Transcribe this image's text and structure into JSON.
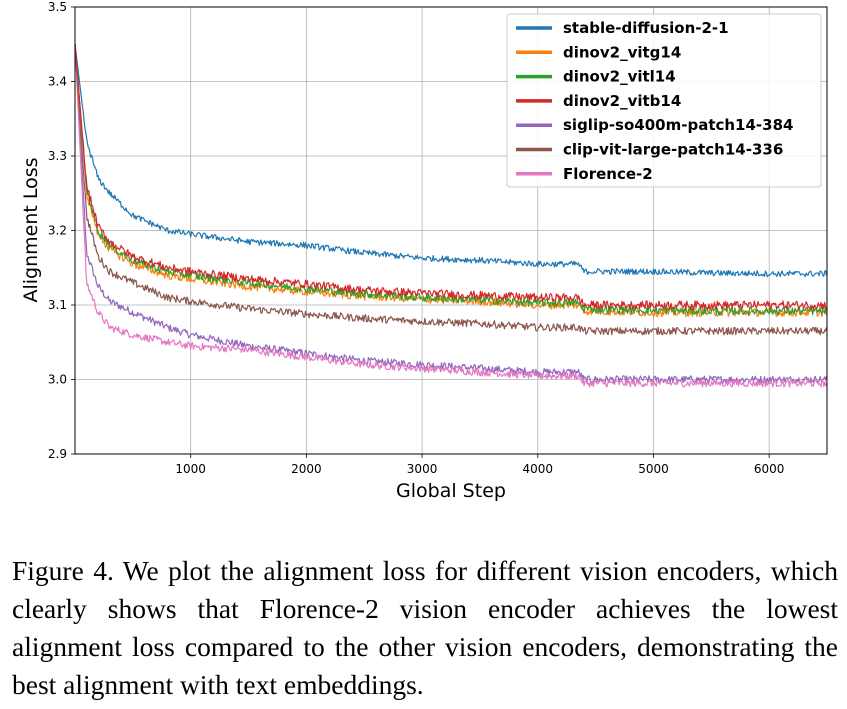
{
  "chart_data": {
    "type": "line",
    "xlabel": "Global Step",
    "ylabel": "Alignment Loss",
    "xlim": [
      0,
      6500
    ],
    "ylim": [
      2.9,
      3.5
    ],
    "xticks": [
      1000,
      2000,
      3000,
      4000,
      5000,
      6000
    ],
    "xtick_labels": [
      "1000",
      "2000",
      "3000",
      "4000",
      "5000",
      "6000"
    ],
    "yticks": [
      2.9,
      3.0,
      3.1,
      3.2,
      3.3,
      3.4,
      3.5
    ],
    "ytick_labels": [
      "2.9",
      "3.0",
      "3.1",
      "3.2",
      "3.3",
      "3.4",
      "3.5"
    ],
    "grid": true,
    "legend_position": "top-right",
    "series": [
      {
        "name": "stable-diffusion-2-1",
        "color": "#1f77b4",
        "noise": 0.004,
        "points": [
          [
            0,
            3.45
          ],
          [
            100,
            3.32
          ],
          [
            200,
            3.27
          ],
          [
            300,
            3.25
          ],
          [
            500,
            3.22
          ],
          [
            800,
            3.2
          ],
          [
            1000,
            3.195
          ],
          [
            1500,
            3.185
          ],
          [
            2000,
            3.18
          ],
          [
            2500,
            3.17
          ],
          [
            3000,
            3.163
          ],
          [
            3500,
            3.16
          ],
          [
            4000,
            3.155
          ],
          [
            4350,
            3.155
          ],
          [
            4400,
            3.145
          ],
          [
            5000,
            3.145
          ],
          [
            5500,
            3.143
          ],
          [
            6000,
            3.142
          ],
          [
            6500,
            3.142
          ]
        ]
      },
      {
        "name": "dinov2_vitg14",
        "color": "#ff7f0e",
        "noise": 0.0055,
        "points": [
          [
            0,
            3.45
          ],
          [
            100,
            3.25
          ],
          [
            200,
            3.195
          ],
          [
            300,
            3.175
          ],
          [
            500,
            3.155
          ],
          [
            800,
            3.14
          ],
          [
            1000,
            3.135
          ],
          [
            1500,
            3.125
          ],
          [
            2000,
            3.118
          ],
          [
            2500,
            3.112
          ],
          [
            3000,
            3.108
          ],
          [
            3500,
            3.105
          ],
          [
            4000,
            3.1
          ],
          [
            4350,
            3.1
          ],
          [
            4400,
            3.092
          ],
          [
            5000,
            3.09
          ],
          [
            5500,
            3.09
          ],
          [
            6000,
            3.09
          ],
          [
            6500,
            3.09
          ]
        ]
      },
      {
        "name": "dinov2_vitl14",
        "color": "#2ca02c",
        "noise": 0.0055,
        "points": [
          [
            0,
            3.45
          ],
          [
            100,
            3.255
          ],
          [
            200,
            3.2
          ],
          [
            300,
            3.18
          ],
          [
            500,
            3.16
          ],
          [
            800,
            3.145
          ],
          [
            1000,
            3.14
          ],
          [
            1500,
            3.13
          ],
          [
            2000,
            3.122
          ],
          [
            2500,
            3.115
          ],
          [
            3000,
            3.11
          ],
          [
            3500,
            3.107
          ],
          [
            4000,
            3.103
          ],
          [
            4350,
            3.103
          ],
          [
            4400,
            3.095
          ],
          [
            5000,
            3.093
          ],
          [
            5500,
            3.092
          ],
          [
            6000,
            3.092
          ],
          [
            6500,
            3.092
          ]
        ]
      },
      {
        "name": "dinov2_vitb14",
        "color": "#d62728",
        "noise": 0.0055,
        "points": [
          [
            0,
            3.45
          ],
          [
            100,
            3.26
          ],
          [
            200,
            3.205
          ],
          [
            300,
            3.185
          ],
          [
            500,
            3.165
          ],
          [
            800,
            3.15
          ],
          [
            1000,
            3.145
          ],
          [
            1500,
            3.135
          ],
          [
            2000,
            3.128
          ],
          [
            2500,
            3.12
          ],
          [
            3000,
            3.116
          ],
          [
            3500,
            3.113
          ],
          [
            4000,
            3.11
          ],
          [
            4350,
            3.11
          ],
          [
            4400,
            3.1
          ],
          [
            5000,
            3.1
          ],
          [
            5500,
            3.1
          ],
          [
            6000,
            3.1
          ],
          [
            6500,
            3.1
          ]
        ]
      },
      {
        "name": "siglip-so400m-patch14-384",
        "color": "#9467bd",
        "noise": 0.005,
        "points": [
          [
            0,
            3.45
          ],
          [
            100,
            3.17
          ],
          [
            200,
            3.125
          ],
          [
            300,
            3.105
          ],
          [
            500,
            3.09
          ],
          [
            800,
            3.07
          ],
          [
            1000,
            3.06
          ],
          [
            1500,
            3.045
          ],
          [
            2000,
            3.035
          ],
          [
            2500,
            3.025
          ],
          [
            3000,
            3.02
          ],
          [
            3500,
            3.015
          ],
          [
            4000,
            3.01
          ],
          [
            4350,
            3.01
          ],
          [
            4400,
            3.0
          ],
          [
            5000,
            3.0
          ],
          [
            5500,
            3.0
          ],
          [
            6000,
            3.0
          ],
          [
            6500,
            3.0
          ]
        ]
      },
      {
        "name": "clip-vit-large-patch14-336",
        "color": "#8c564b",
        "noise": 0.005,
        "points": [
          [
            0,
            3.45
          ],
          [
            100,
            3.22
          ],
          [
            200,
            3.165
          ],
          [
            300,
            3.145
          ],
          [
            500,
            3.13
          ],
          [
            800,
            3.11
          ],
          [
            1000,
            3.105
          ],
          [
            1500,
            3.095
          ],
          [
            2000,
            3.088
          ],
          [
            2500,
            3.082
          ],
          [
            3000,
            3.078
          ],
          [
            3500,
            3.075
          ],
          [
            4000,
            3.07
          ],
          [
            4350,
            3.07
          ],
          [
            4400,
            3.065
          ],
          [
            5000,
            3.065
          ],
          [
            5500,
            3.065
          ],
          [
            6000,
            3.065
          ],
          [
            6500,
            3.065
          ]
        ]
      },
      {
        "name": "Florence-2",
        "color": "#e377c2",
        "noise": 0.005,
        "points": [
          [
            0,
            3.45
          ],
          [
            100,
            3.13
          ],
          [
            200,
            3.09
          ],
          [
            300,
            3.07
          ],
          [
            500,
            3.06
          ],
          [
            800,
            3.05
          ],
          [
            1000,
            3.045
          ],
          [
            1500,
            3.04
          ],
          [
            2000,
            3.03
          ],
          [
            2500,
            3.02
          ],
          [
            3000,
            3.015
          ],
          [
            3500,
            3.01
          ],
          [
            4000,
            3.005
          ],
          [
            4350,
            3.005
          ],
          [
            4400,
            2.995
          ],
          [
            5000,
            2.995
          ],
          [
            5500,
            2.995
          ],
          [
            6000,
            2.995
          ],
          [
            6500,
            2.995
          ]
        ]
      }
    ]
  },
  "caption": "Figure 4. We plot the alignment loss for different vision encoders, which clearly shows that Florence-2 vision encoder achieves the lowest alignment loss compared to the other vision encoders, demonstrating the best alignment with text embeddings."
}
